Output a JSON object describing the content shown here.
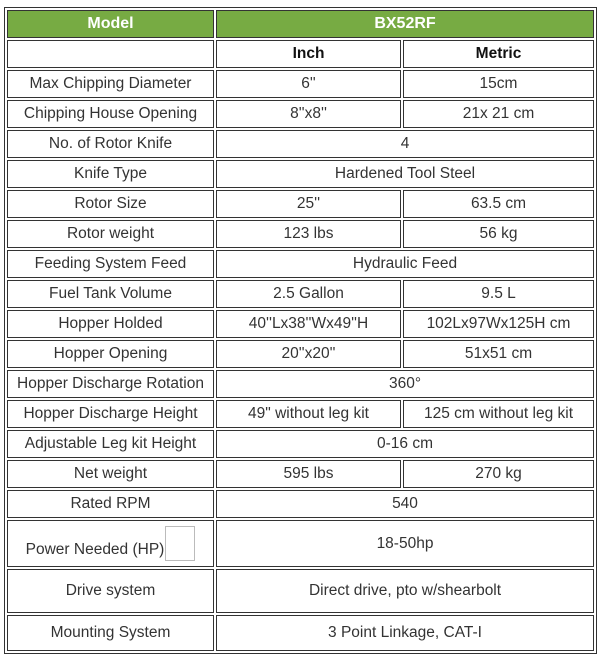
{
  "table": {
    "colors": {
      "header_green": "#77AB43",
      "border": "#333333",
      "text": "#333333",
      "header_text": "#ffffff"
    },
    "header": {
      "model_label": "Model",
      "model_value": "BX52RF"
    },
    "unit_header": {
      "empty": "",
      "inch": "Inch",
      "metric": "Metric"
    },
    "rows": [
      {
        "label": "Max Chipping Diameter",
        "inch": "6''",
        "metric": "15cm"
      },
      {
        "label": "Chipping House Opening",
        "inch": "8''x8''",
        "metric": "21x 21 cm"
      },
      {
        "label": "No. of Rotor Knife",
        "span": "4"
      },
      {
        "label": "Knife Type",
        "span": "Hardened Tool Steel"
      },
      {
        "label": "Rotor Size",
        "inch": "25''",
        "metric": "63.5 cm"
      },
      {
        "label": "Rotor weight",
        "inch": "123 lbs",
        "metric": "56 kg"
      },
      {
        "label": "Feeding System Feed",
        "span": "Hydraulic Feed"
      },
      {
        "label": "Fuel Tank Volume",
        "inch": "2.5 Gallon",
        "metric": "9.5 L"
      },
      {
        "label": "Hopper Holded",
        "inch": "40''Lx38''Wx49''H",
        "metric": "102Lx97Wx125H cm"
      },
      {
        "label": "Hopper Opening",
        "inch": "20''x20''",
        "metric": "51x51 cm"
      },
      {
        "label": "Hopper Discharge Rotation",
        "span": "360°"
      },
      {
        "label": "Hopper Discharge Height",
        "inch": "49\" without leg kit",
        "metric": "125 cm without leg kit"
      },
      {
        "label": "Adjustable Leg kit Height",
        "span": "0-16 cm"
      },
      {
        "label": "Net weight",
        "inch": "595 lbs",
        "metric": "270 kg"
      },
      {
        "label": "Rated RPM",
        "span": "540"
      },
      {
        "label": "Power Needed (HP)",
        "span": "18-50hp",
        "has_placeholder_box": true,
        "row_class": "row-power"
      },
      {
        "label": "Drive system",
        "span": "Direct drive, pto w/shearbolt",
        "row_class": "row-drive"
      },
      {
        "label": "Mounting System",
        "span": "3 Point Linkage, CAT-I",
        "row_class": "row-mount"
      }
    ]
  }
}
